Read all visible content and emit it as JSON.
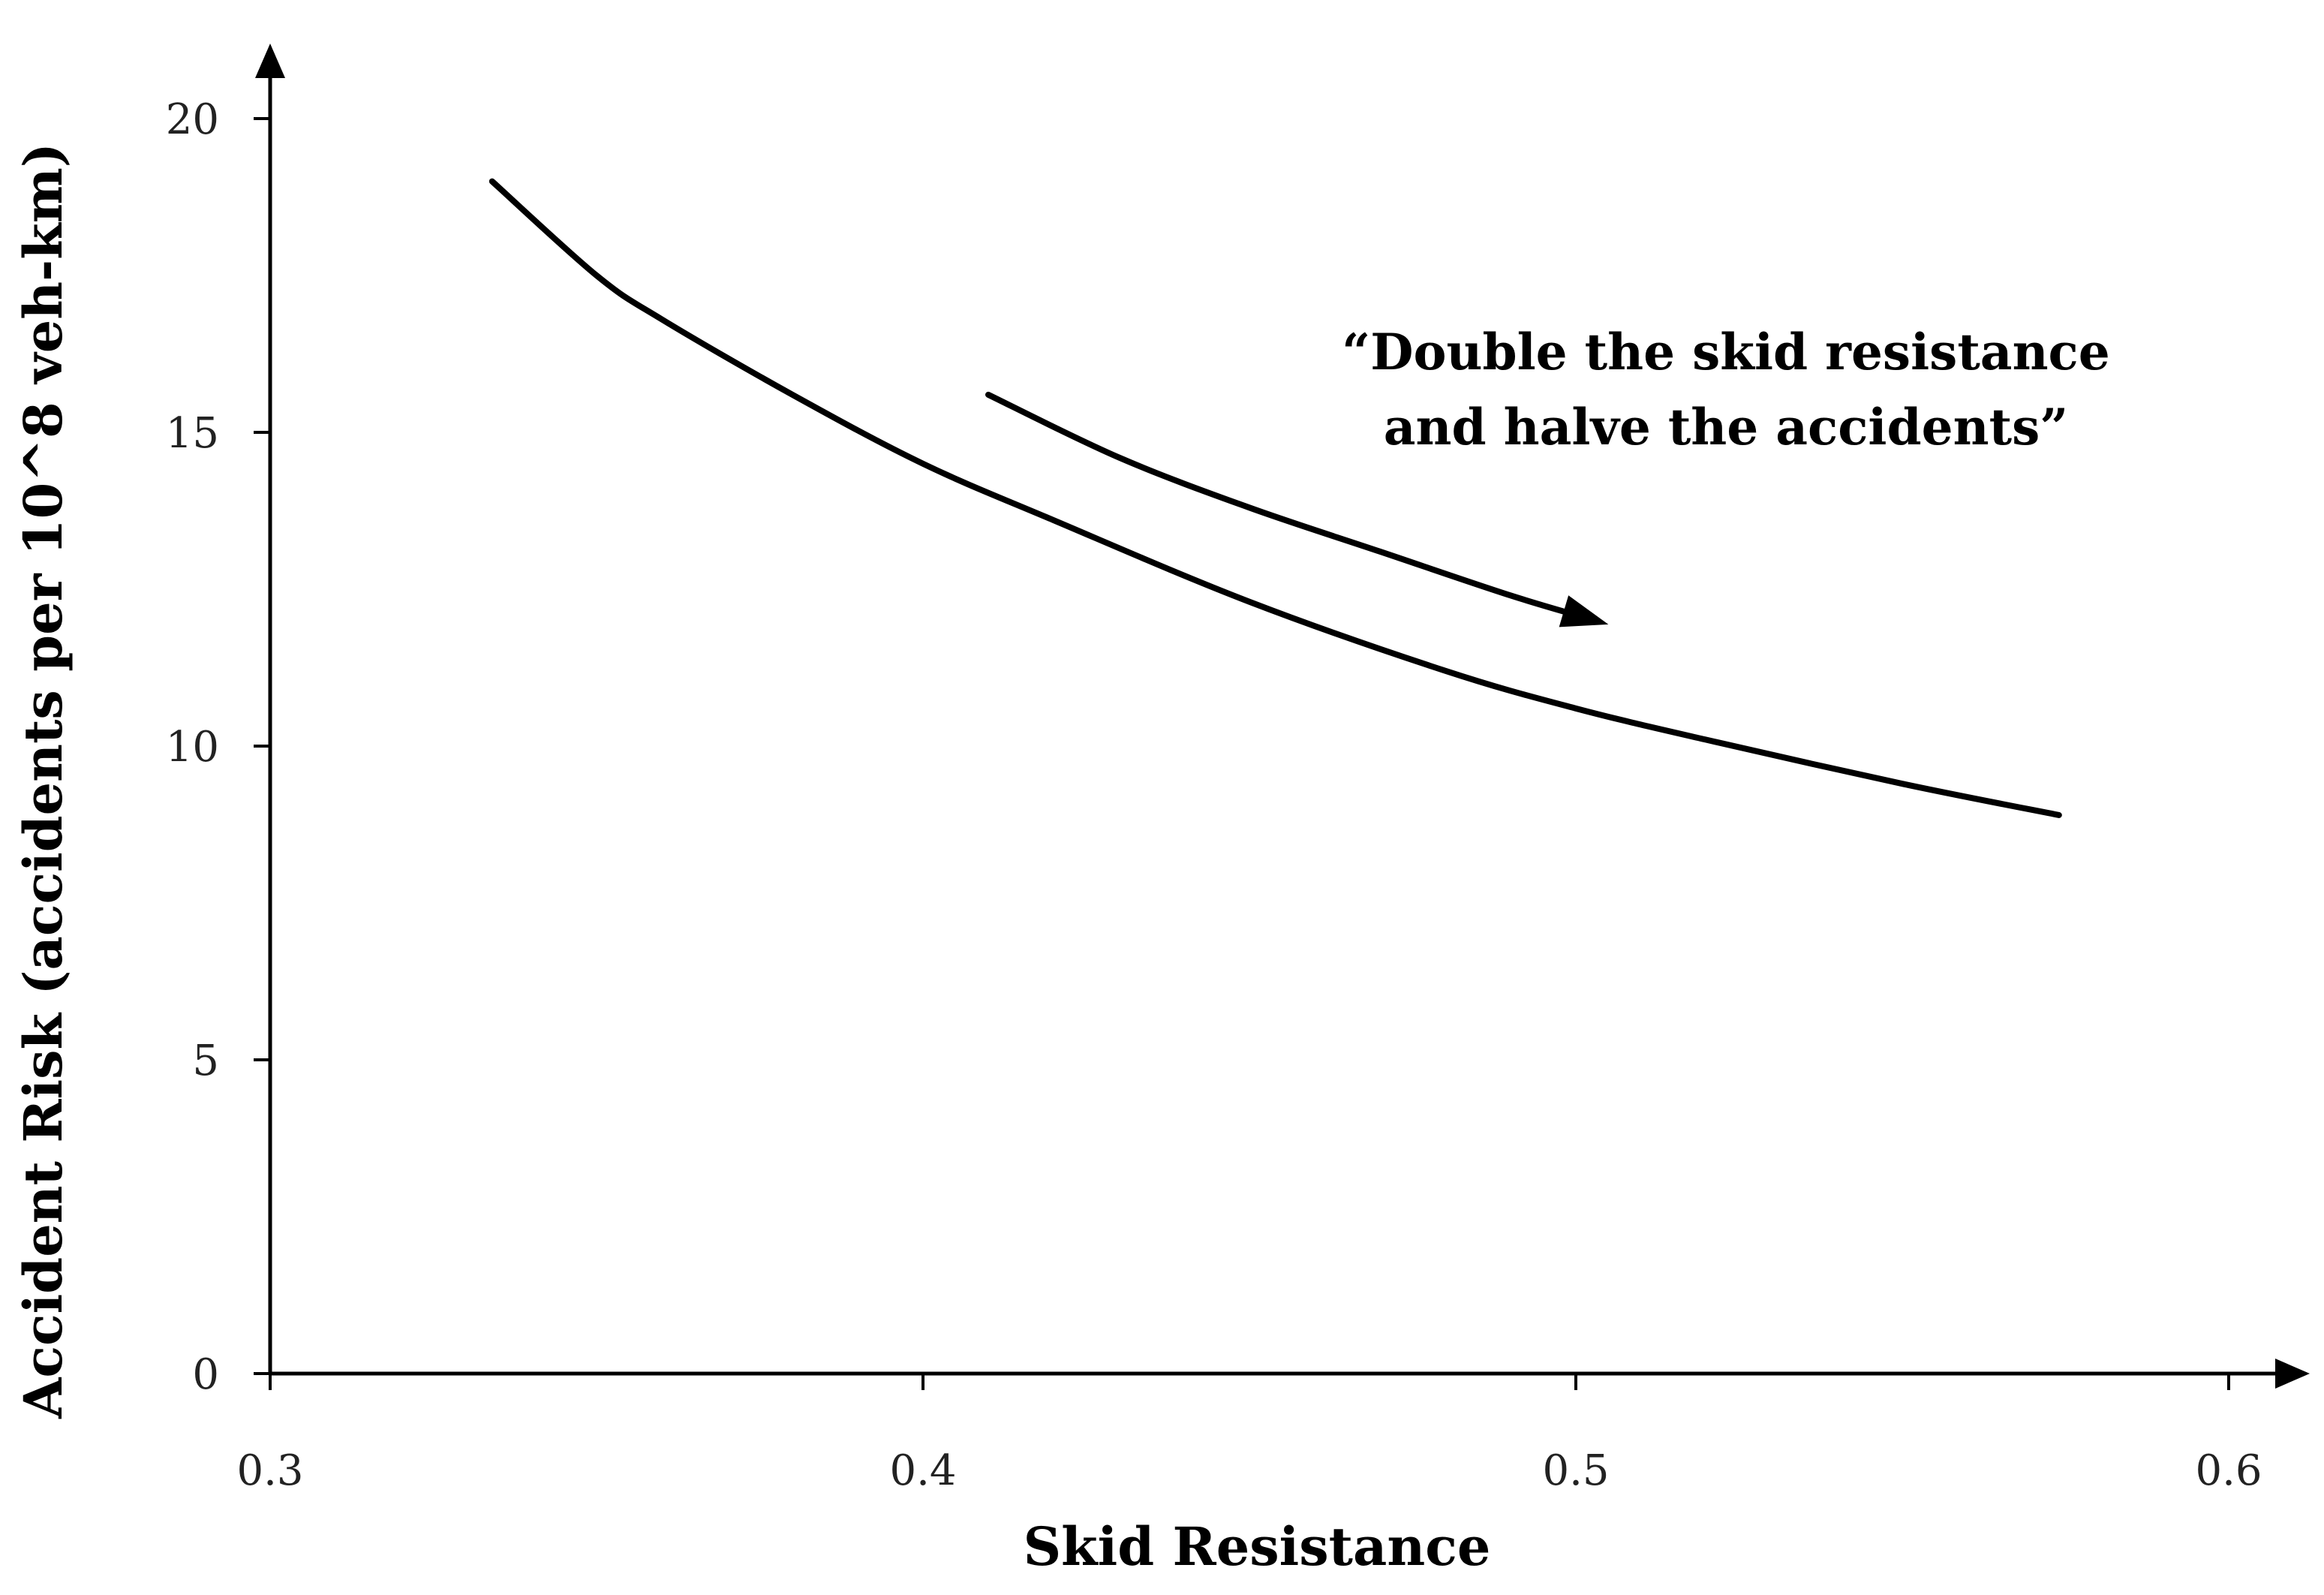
{
  "chart_data": {
    "type": "line",
    "xlabel": "Skid Resistance",
    "ylabel": "Accident Risk (accidents per 10^8 veh-km)",
    "xlim": [
      0.3,
      0.6
    ],
    "ylim": [
      0,
      20
    ],
    "x_ticks": [
      "0.3",
      "0.4",
      "0.5",
      "0.6"
    ],
    "y_ticks": [
      "0",
      "5",
      "10",
      "15",
      "20"
    ],
    "grid": false,
    "legend": "none",
    "series": [
      {
        "x": [
          0.334,
          0.35,
          0.36,
          0.38,
          0.4,
          0.42,
          0.45,
          0.48,
          0.5,
          0.52,
          0.55,
          0.574
        ],
        "y": [
          19.0,
          17.5,
          16.8,
          15.6,
          14.5,
          13.6,
          12.3,
          11.2,
          10.6,
          10.1,
          9.4,
          8.9
        ]
      }
    ],
    "annotation": {
      "lines": [
        "“Double the skid resistance",
        "and halve the accidents”"
      ],
      "arrow": {
        "x": [
          0.41,
          0.43,
          0.45,
          0.47,
          0.49,
          0.503
        ],
        "y": [
          15.6,
          14.6,
          13.8,
          13.1,
          12.4,
          12.0
        ]
      }
    },
    "colors": {
      "line": "#000000",
      "axis": "#000000",
      "text": "#222222"
    }
  }
}
